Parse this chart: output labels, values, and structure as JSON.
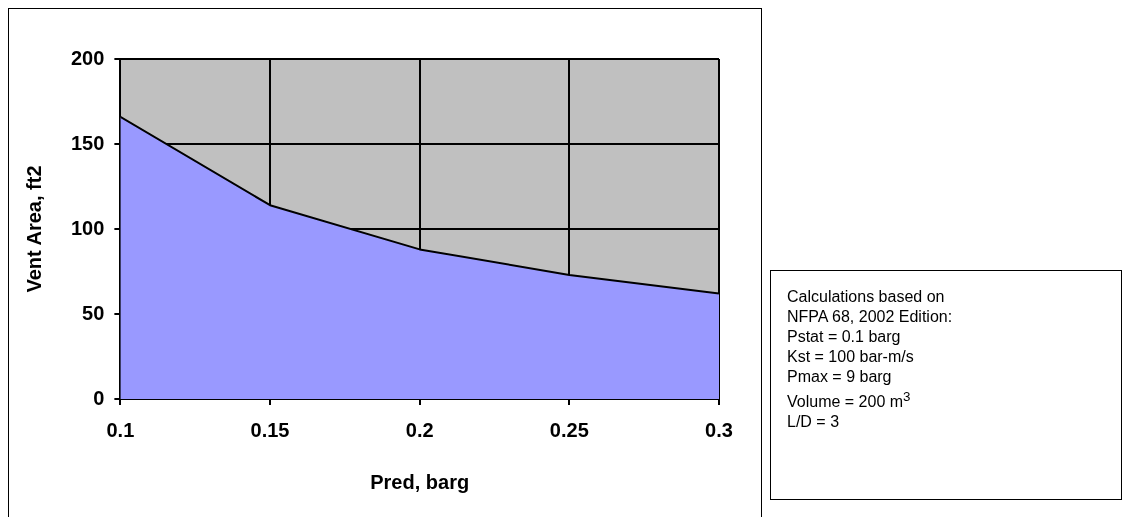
{
  "chart_data": {
    "type": "area",
    "xlabel": "Pred, barg",
    "ylabel": "Vent Area, ft2",
    "x": [
      0.1,
      0.15,
      0.2,
      0.25,
      0.3
    ],
    "series": [
      {
        "color": "#9999ff",
        "values": [
          166,
          114,
          88,
          73,
          62
        ]
      }
    ],
    "xlim": [
      0.1,
      0.3
    ],
    "xticks": [
      0.1,
      0.15,
      0.2,
      0.25,
      0.3
    ],
    "ylim": [
      0,
      200
    ],
    "yticks": [
      0,
      50,
      100,
      150,
      200
    ],
    "grid": true,
    "legend": false,
    "annotations": [
      "Calculations based on",
      "NFPA 68, 2002 Edition:",
      "Pstat = 0.1 barg",
      "Kst = 100 bar-m/s",
      "Pmax = 9 barg",
      "Volume = 200 m$^{3}$",
      "L/D = 3"
    ]
  }
}
